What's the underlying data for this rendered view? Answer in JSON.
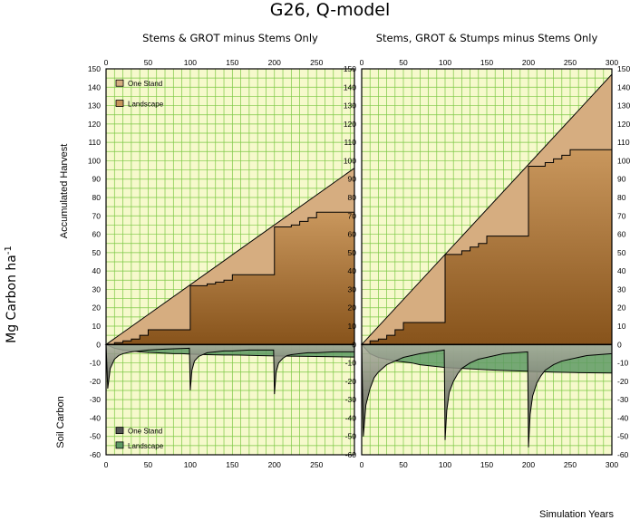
{
  "title": "G26, Q-model",
  "ylabel_main": "Mg Carbon  ha",
  "ylabel_main_sup": "-1",
  "ylabel_upper": "Accumulated Harvest",
  "ylabel_lower": "Soil Carbon",
  "xlabel": "Simulation Years",
  "colors": {
    "grid_bg": "#f6f9cc",
    "grid_line": "#7bc843",
    "harvest_stand_fill": "#d6ad80",
    "harvest_land_top": "#c8955b",
    "harvest_land_bottom": "#8a561e",
    "soil_landscape": "#5e9a64",
    "soil_stand_top": "#a6ab9c",
    "soil_stand_bottom": "#3a3a3a"
  },
  "chart_data": [
    {
      "type": "area",
      "title": "Stems & GROT minus Stems Only",
      "xlim": [
        0,
        295
      ],
      "ylim": [
        -60,
        150
      ],
      "xticks": [
        0,
        50,
        100,
        150,
        200,
        250
      ],
      "yticks": [
        -60,
        -50,
        -40,
        -30,
        -20,
        -10,
        0,
        10,
        20,
        30,
        40,
        50,
        60,
        70,
        80,
        90,
        100,
        110,
        120,
        130,
        140,
        150
      ],
      "legend_harvest": [
        "One Stand",
        "Landscape"
      ],
      "legend_soil": [
        "One Stand",
        "Landscape"
      ],
      "series": [
        {
          "name": "One Stand",
          "group": "harvest",
          "x": [
            0,
            295
          ],
          "y": [
            0,
            96
          ]
        },
        {
          "name": "Landscape",
          "group": "harvest",
          "x": [
            0,
            10,
            10,
            20,
            20,
            30,
            30,
            40,
            40,
            50,
            50,
            100,
            100,
            120,
            120,
            130,
            130,
            140,
            140,
            150,
            150,
            200,
            200,
            220,
            220,
            230,
            230,
            240,
            240,
            250,
            250,
            295
          ],
          "y": [
            0,
            0,
            1,
            1,
            2,
            2,
            3,
            3,
            5,
            5,
            8,
            8,
            32,
            32,
            33,
            33,
            34,
            34,
            35,
            35,
            38,
            38,
            64,
            64,
            65,
            65,
            67,
            67,
            69,
            69,
            72,
            72
          ]
        },
        {
          "name": "One Stand",
          "group": "soil",
          "x": [
            0,
            2,
            5,
            10,
            15,
            20,
            30,
            40,
            50,
            70,
            99,
            100,
            102,
            105,
            110,
            115,
            120,
            130,
            140,
            150,
            170,
            199,
            200,
            202,
            205,
            210,
            215,
            220,
            230,
            240,
            250,
            270,
            295
          ],
          "y": [
            0,
            -24,
            -13,
            -8,
            -6,
            -5,
            -4,
            -3.5,
            -3,
            -2.5,
            -2,
            -25,
            -14,
            -9,
            -6.5,
            -5.5,
            -4.5,
            -4,
            -3.5,
            -3.5,
            -3,
            -3,
            -27,
            -15,
            -10,
            -7.5,
            -6,
            -5.5,
            -5,
            -4.5,
            -4.5,
            -4,
            -4
          ]
        },
        {
          "name": "Landscape",
          "group": "soil",
          "x": [
            0,
            10,
            20,
            30,
            40,
            50,
            60,
            70,
            80,
            90,
            100,
            120,
            140,
            160,
            180,
            200,
            230,
            260,
            295
          ],
          "y": [
            0,
            -2,
            -3,
            -3.5,
            -4,
            -4.3,
            -4.5,
            -4.7,
            -5,
            -5,
            -5.2,
            -5.5,
            -5.7,
            -5.8,
            -6,
            -6.2,
            -6.4,
            -6.6,
            -6.8
          ]
        }
      ]
    },
    {
      "type": "area",
      "title": "Stems, GROT & Stumps minus Stems Only",
      "xlim": [
        0,
        300
      ],
      "ylim": [
        -60,
        150
      ],
      "xticks": [
        0,
        50,
        100,
        150,
        200,
        250,
        300
      ],
      "yticks": [
        -60,
        -50,
        -40,
        -30,
        -20,
        -10,
        0,
        10,
        20,
        30,
        40,
        50,
        60,
        70,
        80,
        90,
        100,
        110,
        120,
        130,
        140,
        150
      ],
      "series": [
        {
          "name": "One Stand",
          "group": "harvest",
          "x": [
            0,
            300
          ],
          "y": [
            0,
            147
          ]
        },
        {
          "name": "Landscape",
          "group": "harvest",
          "x": [
            0,
            10,
            10,
            20,
            20,
            30,
            30,
            40,
            40,
            50,
            50,
            100,
            100,
            120,
            120,
            130,
            130,
            140,
            140,
            150,
            150,
            200,
            200,
            220,
            220,
            230,
            230,
            240,
            240,
            250,
            250,
            300
          ],
          "y": [
            0,
            0,
            2,
            2,
            3,
            3,
            5,
            5,
            8,
            8,
            12,
            12,
            49,
            49,
            51,
            51,
            53,
            53,
            55,
            55,
            59,
            59,
            97,
            97,
            99,
            99,
            101,
            101,
            103,
            103,
            106,
            106
          ]
        },
        {
          "name": "One Stand",
          "group": "soil",
          "x": [
            0,
            2,
            5,
            10,
            15,
            20,
            30,
            40,
            50,
            70,
            99,
            100,
            102,
            105,
            110,
            115,
            120,
            130,
            140,
            150,
            170,
            199,
            200,
            202,
            205,
            210,
            215,
            220,
            230,
            240,
            250,
            270,
            300
          ],
          "y": [
            0,
            -50,
            -33,
            -24,
            -18,
            -15,
            -11,
            -9,
            -7,
            -5,
            -3,
            -52,
            -36,
            -26,
            -20,
            -16,
            -13,
            -10,
            -8,
            -7,
            -5,
            -4,
            -56,
            -38,
            -28,
            -21,
            -17,
            -14,
            -11,
            -9,
            -8,
            -6,
            -5
          ]
        },
        {
          "name": "Landscape",
          "group": "soil",
          "x": [
            0,
            10,
            20,
            30,
            40,
            50,
            60,
            70,
            80,
            90,
            100,
            120,
            140,
            160,
            180,
            200,
            230,
            260,
            300
          ],
          "y": [
            0,
            -5,
            -7,
            -8,
            -9,
            -9.5,
            -10,
            -11,
            -11.5,
            -12,
            -12.5,
            -13,
            -13.5,
            -14,
            -14.3,
            -14.5,
            -15,
            -15.3,
            -15.5
          ]
        }
      ]
    }
  ]
}
